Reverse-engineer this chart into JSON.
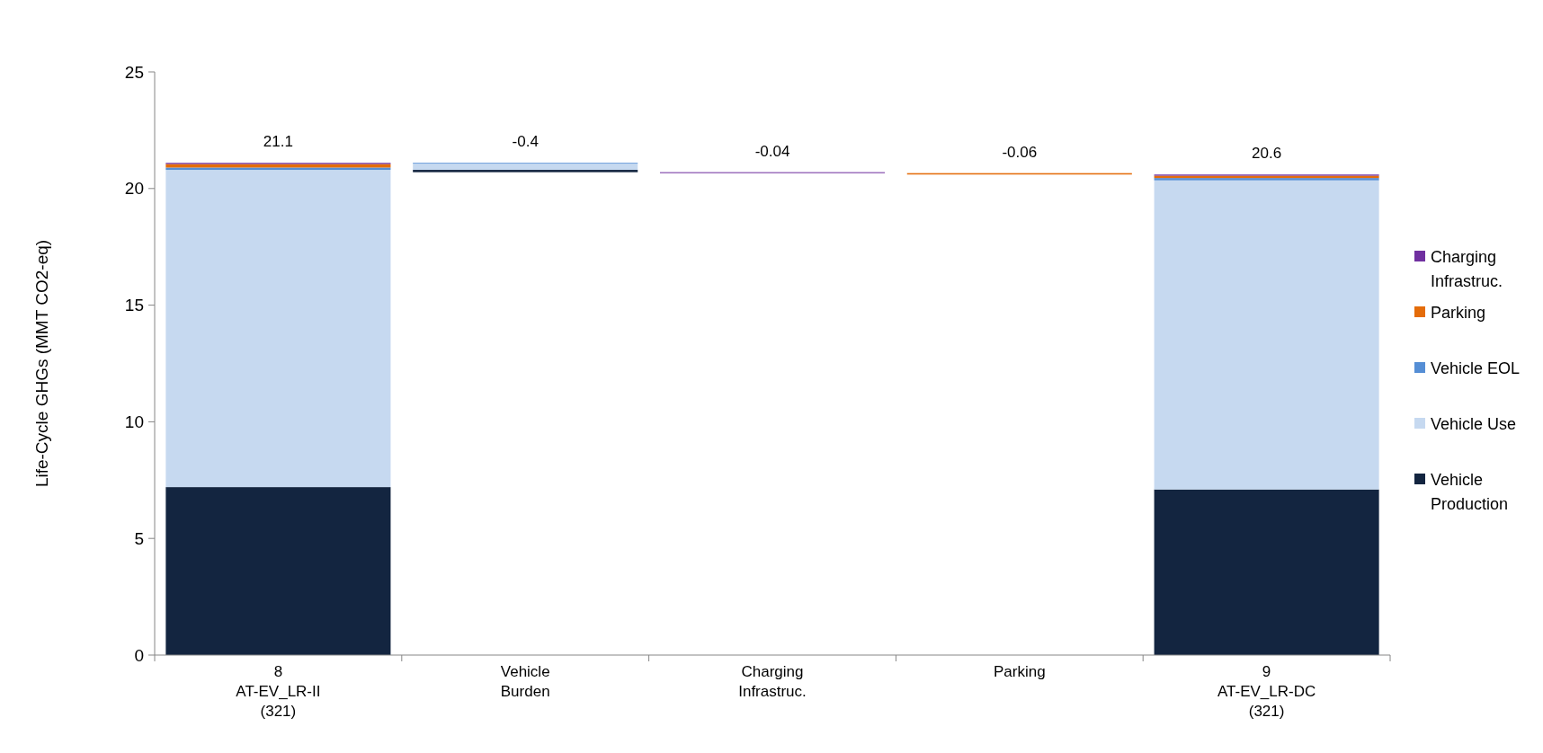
{
  "chart_data": {
    "type": "bar",
    "ylabel": "Life-Cycle GHGs (MMT CO2-eq)",
    "categories": [
      "8\nAT-EV_LR-II\n(321)",
      "Vehicle\nBurden",
      "Charging\nInfrastruc.",
      "Parking",
      "9\nAT-EV_LR-DC\n(321)"
    ],
    "series": [
      {
        "name": "Vehicle Production",
        "color": "#132540",
        "values": [
          7.2,
          0.1,
          null,
          null,
          7.1
        ],
        "base": [
          0,
          20.7,
          null,
          null,
          0
        ]
      },
      {
        "name": "Vehicle Use",
        "color": "#c6d9f0",
        "values": [
          13.6,
          0.28,
          null,
          null,
          13.25
        ],
        "base": [
          7.2,
          20.8,
          null,
          null,
          7.1
        ]
      },
      {
        "name": "Vehicle EOL",
        "color": "#558ed5",
        "values": [
          0.1,
          0.02,
          null,
          null,
          0.1
        ],
        "base": [
          20.8,
          21.08,
          null,
          null,
          20.35
        ]
      },
      {
        "name": "Parking",
        "color": "#e46c0a",
        "values": [
          0.15,
          null,
          null,
          0.06,
          0.1
        ],
        "base": [
          20.9,
          null,
          null,
          20.6,
          20.45
        ]
      },
      {
        "name": "Charging Infrastruc.",
        "color": "#7030a0",
        "values": [
          0.05,
          null,
          0.04,
          null,
          0.05
        ],
        "base": [
          21.05,
          null,
          20.66,
          null,
          20.55
        ]
      }
    ],
    "totals": [
      "21.1",
      null,
      null,
      null,
      "20.6"
    ],
    "annotations": [
      {
        "text": "-0.4",
        "x": "Vehicle\nBurden",
        "y": 21.1
      },
      {
        "text": "-0.04",
        "x": "Charging\nInfrastruc.",
        "y": 20.7
      },
      {
        "text": "-0.06",
        "x": "Parking",
        "y": 20.66
      }
    ],
    "ylim": [
      0,
      25
    ],
    "yticks": [
      0,
      5,
      10,
      15,
      20,
      25
    ],
    "grid": false,
    "legend": "right"
  }
}
